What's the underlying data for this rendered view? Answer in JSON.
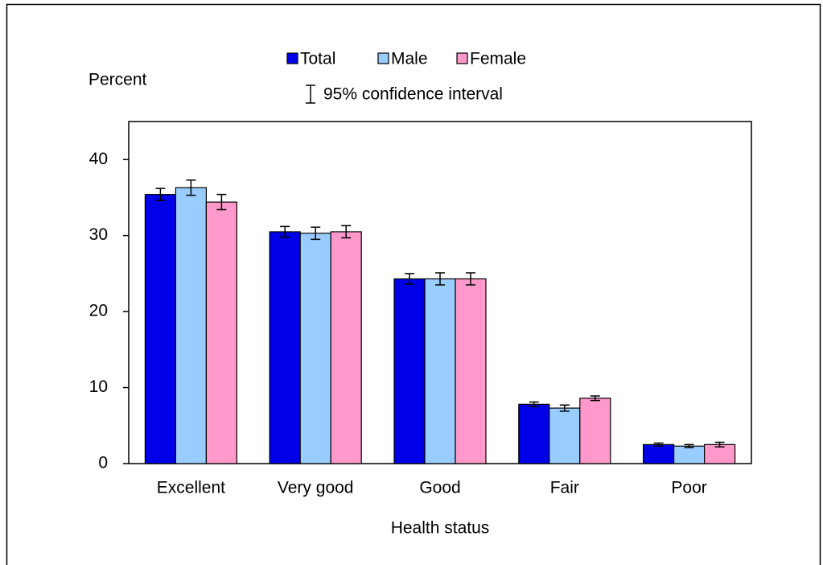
{
  "chart_data": {
    "type": "bar",
    "y_label": "Percent",
    "x_label": "Health status",
    "ci_label": "95% confidence interval",
    "categories": [
      "Excellent",
      "Very good",
      "Good",
      "Fair",
      "Poor"
    ],
    "series": [
      {
        "name": "Total",
        "color": "#0000e8",
        "values": [
          35.4,
          30.5,
          24.3,
          7.8,
          2.5
        ],
        "errors": [
          0.8,
          0.7,
          0.7,
          0.3,
          0.2
        ]
      },
      {
        "name": "Male",
        "color": "#99ccff",
        "values": [
          36.3,
          30.3,
          24.3,
          7.3,
          2.3
        ],
        "errors": [
          1.0,
          0.8,
          0.8,
          0.4,
          0.2
        ]
      },
      {
        "name": "Female",
        "color": "#ff99cc",
        "values": [
          34.4,
          30.5,
          24.3,
          8.6,
          2.5
        ],
        "errors": [
          1.0,
          0.8,
          0.8,
          0.3,
          0.3
        ]
      }
    ],
    "ylim": [
      0,
      45
    ],
    "yticks": [
      0,
      10,
      20,
      30,
      40
    ],
    "grid": false
  }
}
